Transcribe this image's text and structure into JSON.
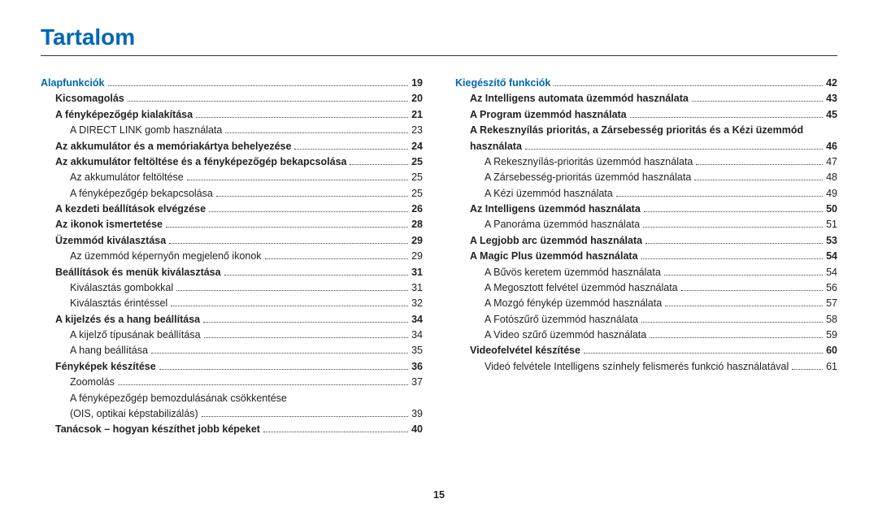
{
  "title": "Tartalom",
  "page_number": "15",
  "left": [
    {
      "cls": "chapter",
      "label": "Alapfunkciók",
      "page": "19"
    },
    {
      "cls": "bold indent1",
      "label": "Kicsomagolás",
      "page": "20"
    },
    {
      "cls": "bold indent1",
      "label": "A fényképezőgép kialakítása",
      "page": "21"
    },
    {
      "cls": "indent2",
      "label": "A DIRECT LINK gomb használata",
      "page": "23"
    },
    {
      "cls": "bold indent1",
      "label": "Az akkumulátor és a memóriakártya behelyezése",
      "page": "24"
    },
    {
      "cls": "bold indent1",
      "label": "Az akkumulátor feltöltése és a fényképezőgép bekapcsolása",
      "page": "25"
    },
    {
      "cls": "indent2",
      "label": "Az akkumulátor feltöltése",
      "page": "25"
    },
    {
      "cls": "indent2",
      "label": "A fényképezőgép bekapcsolása",
      "page": "25"
    },
    {
      "cls": "bold indent1",
      "label": "A kezdeti beállítások elvégzése",
      "page": "26"
    },
    {
      "cls": "bold indent1",
      "label": "Az ikonok ismertetése",
      "page": "28"
    },
    {
      "cls": "bold indent1",
      "label": "Üzemmód kiválasztása",
      "page": "29"
    },
    {
      "cls": "indent2",
      "label": "Az üzemmód képernyőn megjelenő ikonok",
      "page": "29"
    },
    {
      "cls": "bold indent1",
      "label": "Beállítások és menük kiválasztása",
      "page": "31"
    },
    {
      "cls": "indent2",
      "label": "Kiválasztás gombokkal",
      "page": "31"
    },
    {
      "cls": "indent2",
      "label": "Kiválasztás érintéssel",
      "page": "32"
    },
    {
      "cls": "bold indent1",
      "label": "A kijelzés és a hang beállítása",
      "page": "34"
    },
    {
      "cls": "indent2",
      "label": "A kijelző típusának beállítása",
      "page": "34"
    },
    {
      "cls": "indent2",
      "label": "A hang beállítása",
      "page": "35"
    },
    {
      "cls": "bold indent1",
      "label": "Fényképek készítése",
      "page": "36"
    },
    {
      "cls": "indent2",
      "label": "Zoomolás",
      "page": "37"
    },
    {
      "cls": "indent2 nodots",
      "label": "A fényképezőgép bemozdulásának csökkentése",
      "page": ""
    },
    {
      "cls": "indent2",
      "label": "(OIS, optikai képstabilizálás)",
      "page": "39"
    },
    {
      "cls": "bold indent1",
      "label": "Tanácsok – hogyan készíthet jobb képeket",
      "page": "40"
    }
  ],
  "right": [
    {
      "cls": "chapter",
      "label": "Kiegészítő funkciók",
      "page": "42"
    },
    {
      "cls": "bold indent1",
      "label": "Az Intelligens automata üzemmód használata",
      "page": "43"
    },
    {
      "cls": "bold indent1",
      "label": "A Program üzemmód használata",
      "page": "45"
    },
    {
      "cls": "bold indent1 nodots",
      "label": "A Rekesznyílás prioritás, a Zársebesség prioritás és a Kézi üzemmód",
      "page": ""
    },
    {
      "cls": "bold indent1",
      "label": "használata",
      "page": "46"
    },
    {
      "cls": "indent2",
      "label": "A Rekesznyílás-prioritás üzemmód használata",
      "page": "47"
    },
    {
      "cls": "indent2",
      "label": "A Zársebesség-prioritás üzemmód használata",
      "page": "48"
    },
    {
      "cls": "indent2",
      "label": "A Kézi üzemmód használata",
      "page": "49"
    },
    {
      "cls": "bold indent1",
      "label": "Az Intelligens üzemmód használata",
      "page": "50"
    },
    {
      "cls": "indent2",
      "label": "A Panoráma üzemmód használata",
      "page": "51"
    },
    {
      "cls": "bold indent1",
      "label": "A Legjobb arc üzemmód használata",
      "page": "53"
    },
    {
      "cls": "bold indent1",
      "label": "A Magic Plus üzemmód használata",
      "page": "54"
    },
    {
      "cls": "indent2",
      "label": "A Bűvös keretem üzemmód használata",
      "page": "54"
    },
    {
      "cls": "indent2",
      "label": "A Megosztott felvétel üzemmód használata",
      "page": "56"
    },
    {
      "cls": "indent2",
      "label": "A Mozgó fénykép üzemmód használata",
      "page": "57"
    },
    {
      "cls": "indent2",
      "label": "A Fotószűrő üzemmód használata",
      "page": "58"
    },
    {
      "cls": "indent2",
      "label": "A Video szűrő üzemmód használata",
      "page": "59"
    },
    {
      "cls": "bold indent1",
      "label": "Videofelvétel készítése",
      "page": "60"
    },
    {
      "cls": "indent2",
      "label": "Videó felvétele Intelligens színhely felismerés funkció használatával",
      "page": "61"
    }
  ]
}
